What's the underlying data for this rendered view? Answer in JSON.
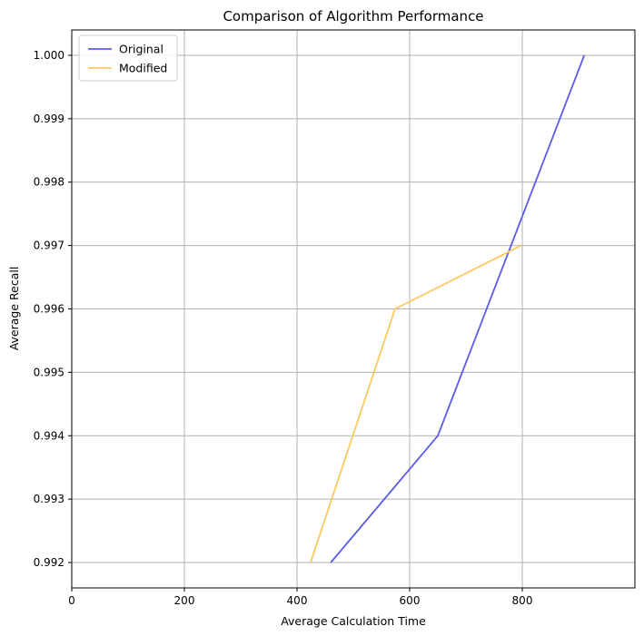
{
  "chart_data": {
    "type": "line",
    "title": "Comparison of Algorithm Performance",
    "xlabel": "Average Calculation Time",
    "ylabel": "Average Recall",
    "xlim": [
      0,
      1000
    ],
    "ylim": [
      0.9916,
      1.0004
    ],
    "xticks": [
      0,
      200,
      400,
      600,
      800
    ],
    "xtick_labels": [
      "0",
      "200",
      "400",
      "600",
      "800"
    ],
    "yticks": [
      0.992,
      0.993,
      0.994,
      0.995,
      0.996,
      0.997,
      0.998,
      0.999,
      1.0
    ],
    "ytick_labels": [
      "0.992",
      "0.993",
      "0.994",
      "0.995",
      "0.996",
      "0.997",
      "0.998",
      "0.999",
      "1.000"
    ],
    "grid": true,
    "legend_position": "top-left",
    "series": [
      {
        "name": "Original",
        "color": "#5b5bea",
        "x": [
          460,
          650,
          910
        ],
        "y": [
          0.992,
          0.994,
          1.0
        ]
      },
      {
        "name": "Modified",
        "color": "#fdc85e",
        "x": [
          424,
          574,
          798
        ],
        "y": [
          0.992,
          0.996,
          0.997
        ]
      }
    ]
  }
}
